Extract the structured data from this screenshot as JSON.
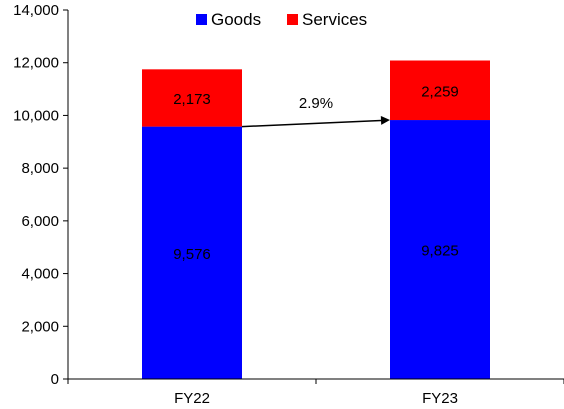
{
  "chart_data": {
    "type": "bar",
    "stacked": true,
    "categories": [
      "FY22",
      "FY23"
    ],
    "series": [
      {
        "name": "Goods",
        "values": [
          9576,
          9825
        ],
        "color": "#0000FF"
      },
      {
        "name": "Services",
        "values": [
          2173,
          2259
        ],
        "color": "#FF0000"
      }
    ],
    "data_labels": [
      [
        "9,576",
        "9,825"
      ],
      [
        "2,173",
        "2,259"
      ]
    ],
    "ylim": [
      0,
      14000
    ],
    "y_ticks": [
      0,
      2000,
      4000,
      6000,
      8000,
      10000,
      12000,
      14000
    ],
    "y_tick_labels": [
      "0",
      "2,000",
      "4,000",
      "6,000",
      "8,000",
      "10,000",
      "12,000",
      "14,000"
    ],
    "grid": false,
    "legend_position": "top-center",
    "annotation": {
      "text": "2.9%",
      "from": "FY22",
      "to": "FY23",
      "arrow": true
    }
  }
}
